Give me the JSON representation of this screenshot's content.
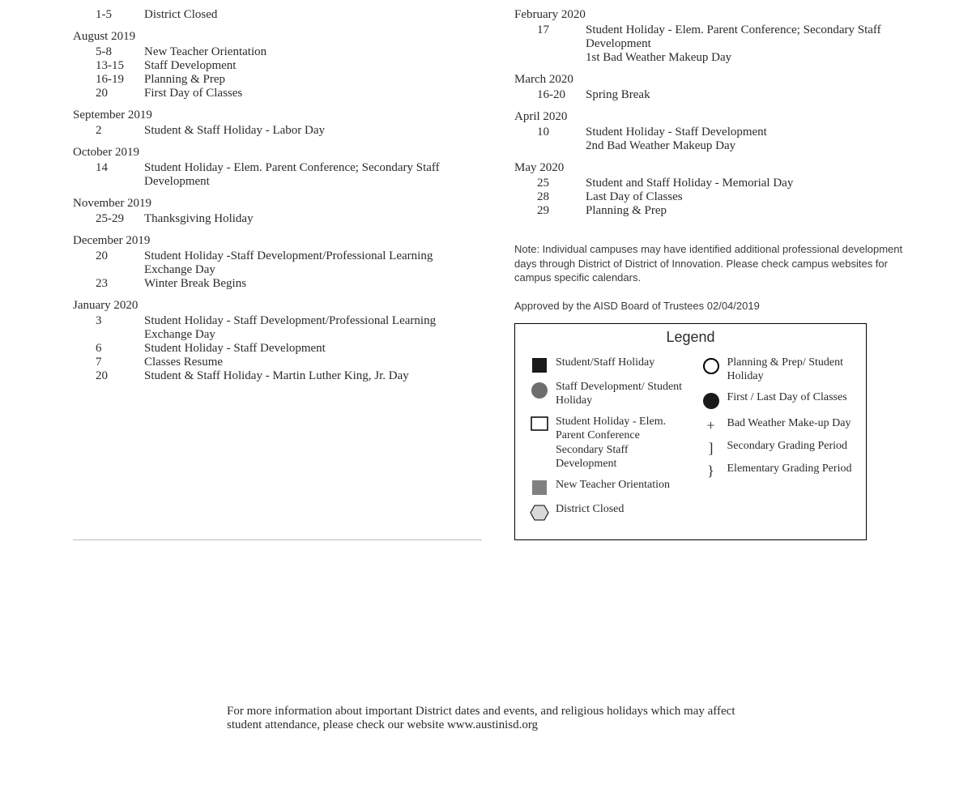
{
  "left": {
    "orphan": {
      "date": "1-5",
      "desc": "District Closed"
    },
    "months": [
      {
        "name": "August 2019",
        "entries": [
          {
            "date": "5-8",
            "desc": "New Teacher Orientation"
          },
          {
            "date": "13-15",
            "desc": "Staff Development"
          },
          {
            "date": "16-19",
            "desc": "Planning & Prep"
          },
          {
            "date": "20",
            "desc": "First Day of Classes"
          }
        ]
      },
      {
        "name": "September 2019",
        "entries": [
          {
            "date": "2",
            "desc": "Student & Staff Holiday - Labor Day"
          }
        ]
      },
      {
        "name": "October 2019",
        "entries": [
          {
            "date": "14",
            "desc": "Student Holiday - Elem. Parent Conference; Secondary Staff Development"
          }
        ]
      },
      {
        "name": "November 2019",
        "entries": [
          {
            "date": "25-29",
            "desc": "Thanksgiving Holiday"
          }
        ]
      },
      {
        "name": "December 2019",
        "entries": [
          {
            "date": "20",
            "desc": "Student Holiday -Staff Development/Professional Learning Exchange Day"
          },
          {
            "date": "23",
            "desc": "Winter Break Begins"
          }
        ]
      },
      {
        "name": "January 2020",
        "entries": [
          {
            "date": "3",
            "desc": "Student Holiday - Staff Development/Professional Learning Exchange Day"
          },
          {
            "date": "6",
            "desc": "Student Holiday - Staff Development"
          },
          {
            "date": "7",
            "desc": "Classes Resume"
          },
          {
            "date": "20",
            "desc": "Student & Staff Holiday - Martin Luther King, Jr. Day"
          }
        ]
      }
    ]
  },
  "right": {
    "months": [
      {
        "name": "February 2020",
        "entries": [
          {
            "date": "17",
            "desc": "Student Holiday - Elem. Parent Conference; Secondary Staff Development\n1st Bad Weather Makeup Day"
          }
        ]
      },
      {
        "name": "March 2020",
        "entries": [
          {
            "date": "16-20",
            "desc": "Spring Break"
          }
        ]
      },
      {
        "name": "April 2020",
        "entries": [
          {
            "date": "10",
            "desc": "Student Holiday - Staff Development\n2nd Bad Weather Makeup Day"
          }
        ]
      },
      {
        "name": "May 2020",
        "entries": [
          {
            "date": "25",
            "desc": "Student and Staff Holiday - Memorial Day"
          },
          {
            "date": "28",
            "desc": "Last Day of Classes"
          },
          {
            "date": "29",
            "desc": "Planning & Prep"
          }
        ]
      }
    ],
    "note": "Note: Individual campuses may have identified additional professional development days through District of District of Innovation. Please check campus websites for campus specific calendars.",
    "approved": "Approved by the AISD Board of Trustees 02/04/2019"
  },
  "legend": {
    "title": "Legend",
    "left": [
      {
        "icon": "black-square",
        "label": "Student/Staff Holiday"
      },
      {
        "icon": "gray-circle",
        "label": "Staff Development/ Student Holiday"
      },
      {
        "icon": "white-square",
        "label": "Student Holiday - Elem. Parent Conference Secondary Staff Development"
      },
      {
        "icon": "gray-square",
        "label": "New Teacher Orientation"
      },
      {
        "icon": "hexagon",
        "label": "District Closed"
      }
    ],
    "right": [
      {
        "icon": "white-circle",
        "label": "Planning & Prep/ Student Holiday"
      },
      {
        "icon": "black-circle",
        "label": "First / Last Day of Classes"
      },
      {
        "icon": "plus",
        "label": "Bad Weather Make-up Day"
      },
      {
        "icon": "bracket",
        "label": "Secondary Grading Period"
      },
      {
        "icon": "brace",
        "label": "Elementary Grading Period"
      }
    ]
  },
  "footer": "For more information about important District dates and events, and religious holidays which may affect student attendance, please check our website www.austinisd.org",
  "colors": {
    "black": "#1a1a1a",
    "gray_circle": "#6e6e6e",
    "gray_square": "#808080",
    "hex_fill": "#d9d9d9",
    "stroke": "#000000"
  }
}
